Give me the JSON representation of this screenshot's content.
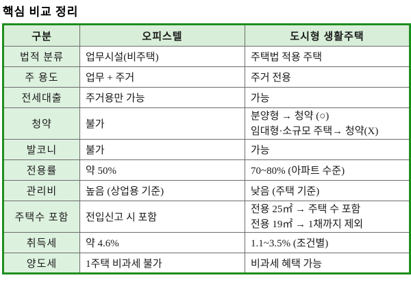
{
  "title": "핵심 비교 정리",
  "colors": {
    "outer_border": "#1e8e1e",
    "inner_border": "#6b6b6b",
    "header_bg": "#d8eed8",
    "label_bg": "#ddf1df",
    "text": "#1a1a1a"
  },
  "table": {
    "headers": [
      "구분",
      "오피스텔",
      "도시형 생활주택"
    ],
    "rows": [
      {
        "label": "법적 분류",
        "officetel": "업무시설(비주택)",
        "urban": "주택법 적용 주택"
      },
      {
        "label": "주 용도",
        "officetel": "업무 + 주거",
        "urban": "주거 전용"
      },
      {
        "label": "전세대출",
        "officetel": "주거용만 가능",
        "urban": "가능"
      },
      {
        "label": "청약",
        "officetel": "불가",
        "urban_lines": [
          "분양형 → 청약 (○)",
          "임대형·소규모 주택→ 청약(X)"
        ]
      },
      {
        "label": "발코니",
        "officetel": "불가",
        "urban": "가능"
      },
      {
        "label": "전용률",
        "officetel": "약 50%",
        "urban": "70~80% (아파트 수준)"
      },
      {
        "label": "관리비",
        "officetel": "높음 (상업용 기준)",
        "urban": "낮음 (주택 기준)"
      },
      {
        "label": "주택수 포함",
        "officetel": "전입신고 시 포함",
        "urban_lines": [
          "전용 25㎡  → 주택 수 포함",
          "전용 19㎡ → 1채까지 제외"
        ]
      },
      {
        "label": "취득세",
        "officetel": "약 4.6%",
        "urban": "1.1~3.5% (조건별)"
      },
      {
        "label": "양도세",
        "officetel": "1주택 비과세 불가",
        "urban": "비과세 혜택 가능"
      }
    ]
  }
}
